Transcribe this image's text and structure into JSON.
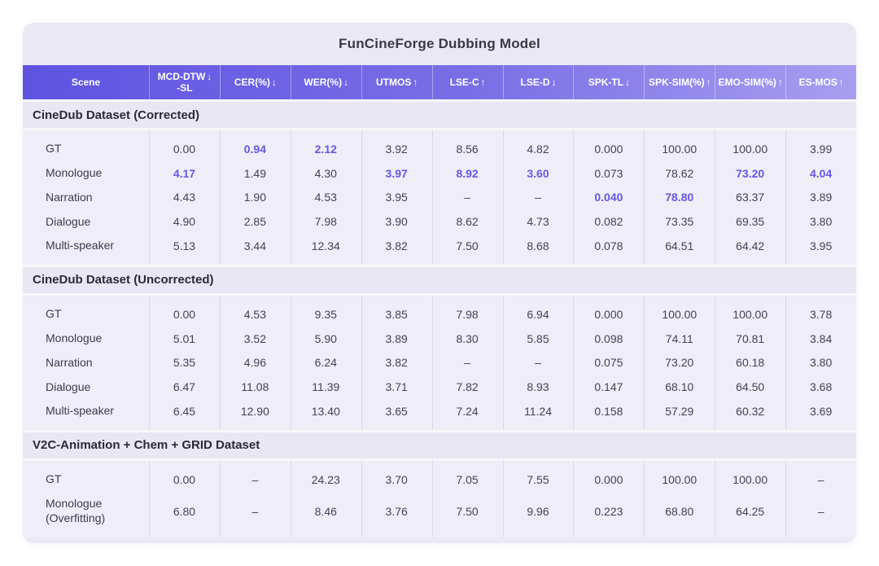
{
  "title": "FunCineForge Dubbing Model",
  "colors": {
    "header_gradient_start": "#5e53e1",
    "header_gradient_end": "#a89ef0",
    "highlight_text": "#6558e2",
    "card_background": "#eae8f4",
    "data_text": "#43434e"
  },
  "table": {
    "columns": [
      {
        "label": "Scene",
        "arrow": ""
      },
      {
        "label": "MCD-DTW",
        "label2": "-SL",
        "arrow": "↓"
      },
      {
        "label": "CER(%)",
        "arrow": "↓"
      },
      {
        "label": "WER(%)",
        "arrow": "↓"
      },
      {
        "label": "UTMOS",
        "arrow": "↑"
      },
      {
        "label": "LSE-C",
        "arrow": "↑"
      },
      {
        "label": "LSE-D",
        "arrow": "↓"
      },
      {
        "label": "SPK-TL",
        "arrow": "↓"
      },
      {
        "label": "SPK-SIM(%)",
        "arrow": "↑"
      },
      {
        "label": "EMO-SIM(%)",
        "arrow": "↑"
      },
      {
        "label": "ES-MOS",
        "arrow": "↑"
      }
    ],
    "sections": [
      {
        "title": "CineDub Dataset (Corrected)",
        "rows": [
          {
            "scene": "GT",
            "values": [
              {
                "v": "0.00"
              },
              {
                "v": "0.94",
                "hl": true
              },
              {
                "v": "2.12",
                "hl": true
              },
              {
                "v": "3.92"
              },
              {
                "v": "8.56"
              },
              {
                "v": "4.82"
              },
              {
                "v": "0.000"
              },
              {
                "v": "100.00"
              },
              {
                "v": "100.00"
              },
              {
                "v": "3.99"
              }
            ]
          },
          {
            "scene": "Monologue",
            "values": [
              {
                "v": "4.17",
                "hl": true
              },
              {
                "v": "1.49"
              },
              {
                "v": "4.30"
              },
              {
                "v": "3.97",
                "hl": true
              },
              {
                "v": "8.92",
                "hl": true
              },
              {
                "v": "3.60",
                "hl": true
              },
              {
                "v": "0.073"
              },
              {
                "v": "78.62"
              },
              {
                "v": "73.20",
                "hl": true
              },
              {
                "v": "4.04",
                "hl": true
              }
            ]
          },
          {
            "scene": "Narration",
            "values": [
              {
                "v": "4.43"
              },
              {
                "v": "1.90"
              },
              {
                "v": "4.53"
              },
              {
                "v": "3.95"
              },
              {
                "v": "–"
              },
              {
                "v": "–"
              },
              {
                "v": "0.040",
                "hl": true
              },
              {
                "v": "78.80",
                "hl": true
              },
              {
                "v": "63.37"
              },
              {
                "v": "3.89"
              }
            ]
          },
          {
            "scene": "Dialogue",
            "values": [
              {
                "v": "4.90"
              },
              {
                "v": "2.85"
              },
              {
                "v": "7.98"
              },
              {
                "v": "3.90"
              },
              {
                "v": "8.62"
              },
              {
                "v": "4.73"
              },
              {
                "v": "0.082"
              },
              {
                "v": "73.35"
              },
              {
                "v": "69.35"
              },
              {
                "v": "3.80"
              }
            ]
          },
          {
            "scene": "Multi-speaker",
            "values": [
              {
                "v": "5.13"
              },
              {
                "v": "3.44"
              },
              {
                "v": "12.34"
              },
              {
                "v": "3.82"
              },
              {
                "v": "7.50"
              },
              {
                "v": "8.68"
              },
              {
                "v": "0.078"
              },
              {
                "v": "64.51"
              },
              {
                "v": "64.42"
              },
              {
                "v": "3.95"
              }
            ]
          }
        ]
      },
      {
        "title": "CineDub Dataset (Uncorrected)",
        "rows": [
          {
            "scene": "GT",
            "values": [
              {
                "v": "0.00"
              },
              {
                "v": "4.53"
              },
              {
                "v": "9.35"
              },
              {
                "v": "3.85"
              },
              {
                "v": "7.98"
              },
              {
                "v": "6.94"
              },
              {
                "v": "0.000"
              },
              {
                "v": "100.00"
              },
              {
                "v": "100.00"
              },
              {
                "v": "3.78"
              }
            ]
          },
          {
            "scene": "Monologue",
            "values": [
              {
                "v": "5.01"
              },
              {
                "v": "3.52"
              },
              {
                "v": "5.90"
              },
              {
                "v": "3.89"
              },
              {
                "v": "8.30"
              },
              {
                "v": "5.85"
              },
              {
                "v": "0.098"
              },
              {
                "v": "74.11"
              },
              {
                "v": "70.81"
              },
              {
                "v": "3.84"
              }
            ]
          },
          {
            "scene": "Narration",
            "values": [
              {
                "v": "5.35"
              },
              {
                "v": "4.96"
              },
              {
                "v": "6.24"
              },
              {
                "v": "3.82"
              },
              {
                "v": "–"
              },
              {
                "v": "–"
              },
              {
                "v": "0.075"
              },
              {
                "v": "73.20"
              },
              {
                "v": "60.18"
              },
              {
                "v": "3.80"
              }
            ]
          },
          {
            "scene": "Dialogue",
            "values": [
              {
                "v": "6.47"
              },
              {
                "v": "11.08"
              },
              {
                "v": "11.39"
              },
              {
                "v": "3.71"
              },
              {
                "v": "7.82"
              },
              {
                "v": "8.93"
              },
              {
                "v": "0.147"
              },
              {
                "v": "68.10"
              },
              {
                "v": "64.50"
              },
              {
                "v": "3.68"
              }
            ]
          },
          {
            "scene": "Multi-speaker",
            "values": [
              {
                "v": "6.45"
              },
              {
                "v": "12.90"
              },
              {
                "v": "13.40"
              },
              {
                "v": "3.65"
              },
              {
                "v": "7.24"
              },
              {
                "v": "11.24"
              },
              {
                "v": "0.158"
              },
              {
                "v": "57.29"
              },
              {
                "v": "60.32"
              },
              {
                "v": "3.69"
              }
            ]
          }
        ]
      },
      {
        "title": "V2C-Animation + Chem + GRID Dataset",
        "rows": [
          {
            "scene": "GT",
            "values": [
              {
                "v": "0.00"
              },
              {
                "v": "–"
              },
              {
                "v": "24.23"
              },
              {
                "v": "3.70"
              },
              {
                "v": "7.05"
              },
              {
                "v": "7.55"
              },
              {
                "v": "0.000"
              },
              {
                "v": "100.00"
              },
              {
                "v": "100.00"
              },
              {
                "v": "–"
              }
            ]
          },
          {
            "scene": "Monologue (Overfitting)",
            "values": [
              {
                "v": "6.80"
              },
              {
                "v": "–"
              },
              {
                "v": "8.46"
              },
              {
                "v": "3.76"
              },
              {
                "v": "7.50"
              },
              {
                "v": "9.96"
              },
              {
                "v": "0.223"
              },
              {
                "v": "68.80"
              },
              {
                "v": "64.25"
              },
              {
                "v": "–"
              }
            ]
          }
        ]
      }
    ]
  }
}
